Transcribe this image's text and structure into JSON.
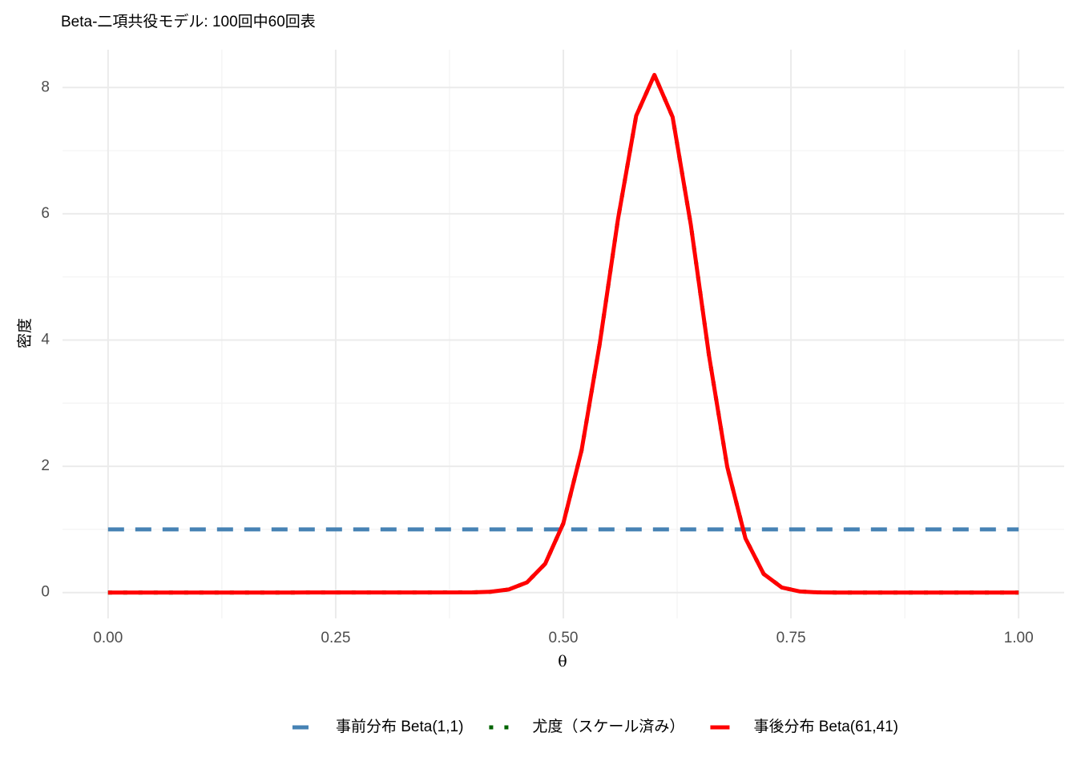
{
  "chart_data": {
    "type": "line",
    "title": "Beta-二項共役モデル: 100回中60回表",
    "x_label": "θ",
    "y_label": "密度",
    "x": [
      0,
      0.2,
      0.4,
      0.42,
      0.44,
      0.46,
      0.48,
      0.5,
      0.52,
      0.54,
      0.56,
      0.58,
      0.6,
      0.62,
      0.64,
      0.66,
      0.68,
      0.7,
      0.72,
      0.74,
      0.76,
      0.78,
      0.8,
      1
    ],
    "series": [
      {
        "name": "事前分布 Beta(1,1)",
        "color": "#4682b4",
        "dash": "dashed",
        "values": [
          1,
          1,
          1,
          1,
          1,
          1,
          1,
          1,
          1,
          1,
          1,
          1,
          1,
          1,
          1,
          1,
          1,
          1,
          1,
          1,
          1,
          1,
          1,
          1
        ]
      },
      {
        "name": "尤度（スケール済み）",
        "color": "#006400",
        "dash": "dotted",
        "values": [
          0,
          0,
          0.002,
          0.012,
          0.048,
          0.16,
          0.454,
          1.096,
          2.251,
          3.944,
          5.913,
          7.553,
          8.2,
          7.533,
          5.825,
          3.752,
          1.99,
          0.858,
          0.294,
          0.079,
          0.016,
          0.002,
          0,
          0
        ]
      },
      {
        "name": "事後分布 Beta(61,41)",
        "color": "#ff0000",
        "dash": "solid",
        "values": [
          0,
          0,
          0.002,
          0.012,
          0.048,
          0.16,
          0.454,
          1.096,
          2.251,
          3.944,
          5.913,
          7.553,
          8.2,
          7.533,
          5.825,
          3.752,
          1.99,
          0.858,
          0.294,
          0.079,
          0.016,
          0.002,
          0,
          0
        ]
      }
    ],
    "xlim": [
      -0.05,
      1.05
    ],
    "xticks": [
      {
        "value": 0,
        "label": "0.00"
      },
      {
        "value": 0.25,
        "label": "0.25"
      },
      {
        "value": 0.5,
        "label": "0.50"
      },
      {
        "value": 0.75,
        "label": "0.75"
      },
      {
        "value": 1,
        "label": "1.00"
      }
    ],
    "ylim": [
      -0.41,
      8.6
    ],
    "yticks": [
      0,
      2,
      4,
      6,
      8
    ],
    "grid": true,
    "legend": "bottom"
  }
}
